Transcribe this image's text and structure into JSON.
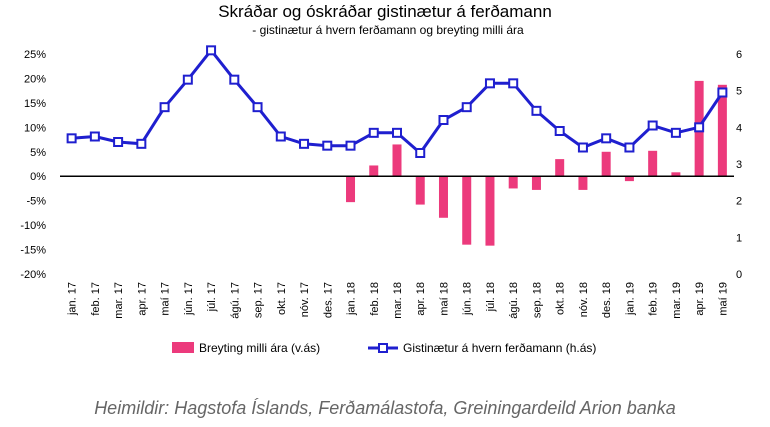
{
  "chart_data": {
    "type": "bar+line",
    "title": "Skráðar og óskráðar gistinætur á ferðamann",
    "subtitle": "- gistinætur á hvern ferðamann og breyting milli ára",
    "categories": [
      "jan. 17",
      "feb. 17",
      "mar. 17",
      "apr. 17",
      "maí 17",
      "jún. 17",
      "júl. 17",
      "ágú. 17",
      "sep. 17",
      "okt. 17",
      "nóv. 17",
      "des. 17",
      "jan. 18",
      "feb. 18",
      "mar. 18",
      "apr. 18",
      "maí 18",
      "jún. 18",
      "júl. 18",
      "ágú. 18",
      "sep. 18",
      "okt. 18",
      "nóv. 18",
      "des. 18",
      "jan. 19",
      "feb. 19",
      "mar. 19",
      "apr. 19",
      "maí 19"
    ],
    "series": [
      {
        "name": "Breyting milli ára (v.ás)",
        "type": "bar",
        "axis": "left",
        "color": "#ec3a7c",
        "values": [
          null,
          null,
          null,
          null,
          null,
          null,
          null,
          null,
          null,
          null,
          null,
          null,
          -5.3,
          2.2,
          6.5,
          -5.8,
          -8.5,
          -14.0,
          -14.2,
          -2.5,
          -2.8,
          3.5,
          -2.8,
          5.0,
          -1.0,
          5.2,
          0.8,
          19.5,
          18.7
        ]
      },
      {
        "name": "Gistinætur á hvern ferðamann (h.ás)",
        "type": "line",
        "axis": "right",
        "color": "#1f1fcf",
        "values": [
          3.7,
          3.75,
          3.6,
          3.55,
          4.55,
          5.3,
          6.1,
          5.3,
          4.55,
          3.75,
          3.55,
          3.5,
          3.5,
          3.85,
          3.85,
          3.3,
          4.2,
          4.55,
          5.2,
          5.2,
          4.45,
          3.9,
          3.45,
          3.7,
          3.45,
          4.05,
          3.85,
          4.0,
          4.95
        ]
      }
    ],
    "left_axis": {
      "min": -20,
      "max": 25,
      "step": 5,
      "format": "percent"
    },
    "right_axis": {
      "min": 0,
      "max": 6,
      "step": 1
    },
    "legend_position": "bottom",
    "grid": false
  },
  "source": "Heimildir: Hagstofa Íslands, Ferðamálastofa, Greiningardeild Arion banka"
}
